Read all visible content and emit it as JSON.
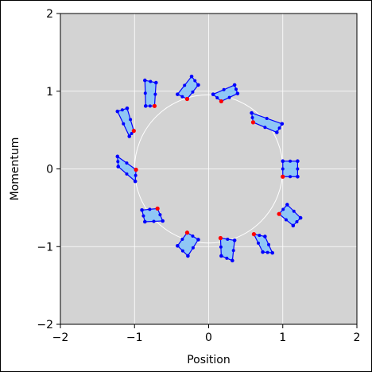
{
  "chart_data": {
    "type": "scatter",
    "xlabel": "Position",
    "ylabel": "Momentum",
    "xlim": [
      -2,
      2
    ],
    "ylim": [
      -2,
      2
    ],
    "xticks": [
      -2,
      -1,
      0,
      1,
      2
    ],
    "yticks": [
      -2,
      -1,
      0,
      1,
      2
    ],
    "xtick_labels": [
      "−2",
      "−1",
      "0",
      "1",
      "2"
    ],
    "ytick_labels": [
      "−2",
      "−1",
      "0",
      "1",
      "2"
    ],
    "grid": true,
    "background": "#d3d3d3",
    "circle": {
      "center": [
        0,
        0
      ],
      "radius": 1,
      "color": "#ffffff"
    },
    "patch_fill": "#8fc7f5",
    "patch_edge": "#0000ff",
    "marker_color": "#0000ff",
    "reference_marker_color": "#ff0000",
    "patches": [
      {
        "points": [
          [
            1.0,
            0.1
          ],
          [
            1.2,
            0.1
          ],
          [
            1.2,
            -0.1
          ],
          [
            1.0,
            -0.1
          ]
        ],
        "reference": [
          1.0,
          -0.1
        ]
      },
      {
        "points": [
          [
            0.58,
            0.72
          ],
          [
            0.99,
            0.58
          ],
          [
            0.92,
            0.47
          ],
          [
            0.6,
            0.6
          ]
        ],
        "reference": [
          0.6,
          0.6
        ]
      },
      {
        "points": [
          [
            0.06,
            0.96
          ],
          [
            0.35,
            1.08
          ],
          [
            0.39,
            0.97
          ],
          [
            0.17,
            0.87
          ]
        ],
        "reference": [
          0.17,
          0.87
        ]
      },
      {
        "points": [
          [
            -0.42,
            0.96
          ],
          [
            -0.23,
            1.19
          ],
          [
            -0.14,
            1.08
          ],
          [
            -0.29,
            0.9
          ]
        ],
        "reference": [
          -0.29,
          0.9
        ]
      },
      {
        "points": [
          [
            -0.86,
            1.14
          ],
          [
            -0.71,
            1.11
          ],
          [
            -0.73,
            0.81
          ],
          [
            -0.85,
            0.81
          ]
        ],
        "reference": [
          -0.73,
          0.81
        ]
      },
      {
        "points": [
          [
            -1.23,
            0.74
          ],
          [
            -1.1,
            0.78
          ],
          [
            -1.01,
            0.49
          ],
          [
            -1.07,
            0.42
          ]
        ],
        "reference": [
          -1.01,
          0.49
        ]
      },
      {
        "points": [
          [
            -1.23,
            0.16
          ],
          [
            -0.98,
            -0.01
          ],
          [
            -0.99,
            -0.16
          ],
          [
            -1.22,
            0.03
          ]
        ],
        "reference": [
          -0.98,
          -0.01
        ]
      },
      {
        "points": [
          [
            -0.9,
            -0.53
          ],
          [
            -0.69,
            -0.51
          ],
          [
            -0.62,
            -0.67
          ],
          [
            -0.86,
            -0.68
          ]
        ],
        "reference": [
          -0.69,
          -0.51
        ]
      },
      {
        "points": [
          [
            -0.42,
            -0.99
          ],
          [
            -0.29,
            -0.82
          ],
          [
            -0.14,
            -0.91
          ],
          [
            -0.28,
            -1.12
          ]
        ],
        "reference": [
          -0.29,
          -0.82
        ]
      },
      {
        "points": [
          [
            0.16,
            -0.89
          ],
          [
            0.35,
            -0.92
          ],
          [
            0.32,
            -1.18
          ],
          [
            0.17,
            -1.12
          ]
        ],
        "reference": [
          0.16,
          -0.89
        ]
      },
      {
        "points": [
          [
            0.61,
            -0.84
          ],
          [
            0.76,
            -0.87
          ],
          [
            0.86,
            -1.08
          ],
          [
            0.73,
            -1.07
          ]
        ],
        "reference": [
          0.61,
          -0.84
        ]
      },
      {
        "points": [
          [
            0.95,
            -0.58
          ],
          [
            1.06,
            -0.46
          ],
          [
            1.24,
            -0.63
          ],
          [
            1.14,
            -0.73
          ]
        ],
        "reference": [
          0.95,
          -0.58
        ]
      }
    ]
  }
}
